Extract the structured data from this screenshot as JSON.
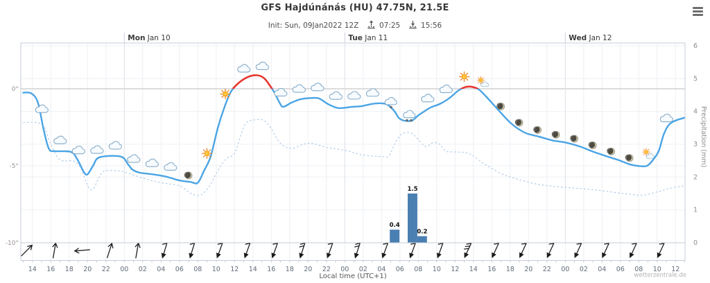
{
  "header": {
    "title": "GFS Hajdúnánás (HU) 47.75N, 21.5E",
    "init_text": "Init: Sun, 09Jan2022 12Z",
    "sunrise": "07:25",
    "sunset": "15:56"
  },
  "footer": {
    "watermark": "wetterzentrale.de"
  },
  "chart_data": {
    "type": "line",
    "title": "GFS Hajdúnánás (HU) 47.75N, 21.5E",
    "x_axis": {
      "label": "Local time (UTC+1)",
      "start_hour_local": 13,
      "span_hours": 72,
      "hour_labels": [
        "14",
        "16",
        "18",
        "20",
        "22",
        "00",
        "02",
        "04",
        "06",
        "08",
        "10",
        "12",
        "14",
        "16",
        "18",
        "20",
        "22",
        "00",
        "02",
        "04",
        "06",
        "08",
        "10",
        "12",
        "14",
        "16",
        "18",
        "20",
        "22",
        "00",
        "02",
        "04",
        "06",
        "08",
        "10",
        "12"
      ]
    },
    "days": [
      {
        "day": "Mon",
        "date": "Jan 10",
        "hour": 11
      },
      {
        "day": "Tue",
        "date": "Jan 11",
        "hour": 35
      },
      {
        "day": "Wed",
        "date": "Jan 12",
        "hour": 59
      }
    ],
    "y_left": {
      "ticks": [
        {
          "label": "0°",
          "value": 0
        },
        {
          "label": "-5°",
          "value": -5
        },
        {
          "label": "-10°",
          "value": -10
        }
      ],
      "range": [
        -13,
        3
      ]
    },
    "y_right": {
      "label": "Precipitation (mm)",
      "ticks": [
        "0",
        "1",
        "2",
        "3",
        "4",
        "5",
        "6"
      ],
      "range": [
        0,
        6
      ]
    },
    "series": [
      {
        "name": "temperature_2m",
        "unit": "C",
        "color_below_zero": "#4aa4e4",
        "color_above_zero": "#e8352e",
        "points": [
          [
            0,
            -0.25
          ],
          [
            0.9,
            -0.3
          ],
          [
            1.6,
            -0.9
          ],
          [
            2.2,
            -2.6
          ],
          [
            2.8,
            -3.9
          ],
          [
            3.5,
            -4.05
          ],
          [
            5.2,
            -4.1
          ],
          [
            5.9,
            -4.6
          ],
          [
            6.6,
            -5.4
          ],
          [
            7.0,
            -5.55
          ],
          [
            7.6,
            -5.0
          ],
          [
            8.3,
            -4.45
          ],
          [
            10.6,
            -4.4
          ],
          [
            11.4,
            -4.9
          ],
          [
            11.9,
            -5.25
          ],
          [
            12.7,
            -5.45
          ],
          [
            14,
            -5.55
          ],
          [
            15.5,
            -5.7
          ],
          [
            17,
            -5.95
          ],
          [
            18.2,
            -6.05
          ],
          [
            19,
            -6.1
          ],
          [
            19.7,
            -5.3
          ],
          [
            20.4,
            -4.4
          ],
          [
            21.2,
            -2.5
          ],
          [
            21.9,
            -1.2
          ],
          [
            22.6,
            -0.2
          ],
          [
            23.4,
            0.35
          ],
          [
            24.4,
            0.75
          ],
          [
            25.4,
            0.88
          ],
          [
            26.2,
            0.7
          ],
          [
            26.8,
            0.25
          ],
          [
            27.3,
            -0.2
          ],
          [
            27.9,
            -0.9
          ],
          [
            28.3,
            -1.17
          ],
          [
            29.2,
            -0.9
          ],
          [
            30.2,
            -0.68
          ],
          [
            31.3,
            -0.6
          ],
          [
            32.2,
            -0.63
          ],
          [
            33.2,
            -1.0
          ],
          [
            34.3,
            -1.25
          ],
          [
            35.7,
            -1.18
          ],
          [
            36.9,
            -1.12
          ],
          [
            38,
            -0.98
          ],
          [
            39,
            -0.94
          ],
          [
            39.7,
            -1.05
          ],
          [
            40.4,
            -1.45
          ],
          [
            40.9,
            -1.9
          ],
          [
            41.5,
            -2.07
          ],
          [
            42.3,
            -2.07
          ],
          [
            43,
            -1.73
          ],
          [
            43.7,
            -1.45
          ],
          [
            44.4,
            -1.2
          ],
          [
            45.4,
            -0.97
          ],
          [
            46.4,
            -0.6
          ],
          [
            47.4,
            -0.1
          ],
          [
            48.2,
            0.12
          ],
          [
            48.9,
            0.12
          ],
          [
            49.6,
            -0.05
          ],
          [
            50.3,
            -0.45
          ],
          [
            51.6,
            -1.3
          ],
          [
            53.1,
            -2.25
          ],
          [
            54.6,
            -2.85
          ],
          [
            56.1,
            -3.1
          ],
          [
            57.6,
            -3.35
          ],
          [
            59.1,
            -3.5
          ],
          [
            60.6,
            -3.75
          ],
          [
            62.1,
            -4.1
          ],
          [
            63.6,
            -4.4
          ],
          [
            64.9,
            -4.65
          ],
          [
            66,
            -4.9
          ],
          [
            66.8,
            -5.0
          ],
          [
            67.9,
            -5.0
          ],
          [
            68.7,
            -4.5
          ],
          [
            69.2,
            -4.0
          ],
          [
            69.7,
            -3.0
          ],
          [
            70.2,
            -2.4
          ],
          [
            70.7,
            -2.15
          ],
          [
            71.3,
            -2.0
          ],
          [
            72,
            -1.88
          ]
        ]
      },
      {
        "name": "dewpoint_2m",
        "unit": "C",
        "style": "dashed",
        "color": "#b0cce9",
        "points": [
          [
            0,
            -2.2
          ],
          [
            1.5,
            -2.2
          ],
          [
            2.3,
            -2.5
          ],
          [
            3,
            -3.6
          ],
          [
            4,
            -4.6
          ],
          [
            5.5,
            -4.7
          ],
          [
            6.3,
            -5.2
          ],
          [
            7,
            -6.3
          ],
          [
            7.6,
            -6.5
          ],
          [
            8.5,
            -5.5
          ],
          [
            9.3,
            -5.3
          ],
          [
            11,
            -5.4
          ],
          [
            13,
            -5.8
          ],
          [
            15,
            -6.1
          ],
          [
            17,
            -6.3
          ],
          [
            18.3,
            -6.8
          ],
          [
            19.3,
            -6.9
          ],
          [
            20.3,
            -6.3
          ],
          [
            21,
            -5.5
          ],
          [
            22,
            -4.6
          ],
          [
            23,
            -4.2
          ],
          [
            23.7,
            -3.0
          ],
          [
            24.3,
            -2.2
          ],
          [
            25.5,
            -2.0
          ],
          [
            26.3,
            -2.1
          ],
          [
            27,
            -2.6
          ],
          [
            27.8,
            -3.4
          ],
          [
            28.6,
            -3.8
          ],
          [
            29.5,
            -3.85
          ],
          [
            30.5,
            -3.6
          ],
          [
            31.5,
            -3.55
          ],
          [
            33,
            -3.8
          ],
          [
            35,
            -4.0
          ],
          [
            37,
            -4.3
          ],
          [
            39,
            -4.4
          ],
          [
            39.8,
            -4.35
          ],
          [
            40.6,
            -3.4
          ],
          [
            41.3,
            -2.9
          ],
          [
            42.3,
            -2.9
          ],
          [
            43,
            -3.3
          ],
          [
            43.8,
            -3.75
          ],
          [
            44.6,
            -3.5
          ],
          [
            45.3,
            -3.6
          ],
          [
            46,
            -4.05
          ],
          [
            47,
            -4.1
          ],
          [
            48.5,
            -4.2
          ],
          [
            50,
            -4.8
          ],
          [
            52,
            -5.5
          ],
          [
            54,
            -5.9
          ],
          [
            56,
            -6.2
          ],
          [
            58,
            -6.35
          ],
          [
            60,
            -6.45
          ],
          [
            62,
            -6.55
          ],
          [
            64,
            -6.7
          ],
          [
            66,
            -6.85
          ],
          [
            67.5,
            -6.9
          ],
          [
            69,
            -6.7
          ],
          [
            70.5,
            -6.45
          ],
          [
            72,
            -6.3
          ]
        ]
      }
    ],
    "precip_bars": [
      {
        "start_hour": 39.9,
        "end_hour": 40.95,
        "value": 0.4,
        "label": "0.4"
      },
      {
        "start_hour": 41.85,
        "end_hour": 42.9,
        "value": 1.5,
        "label": "1.5"
      },
      {
        "start_hour": 42.9,
        "end_hour": 43.95,
        "value": 0.2,
        "label": "0.2"
      }
    ],
    "weather_icons": [
      [
        2,
        "cloud"
      ],
      [
        4,
        "cloud"
      ],
      [
        6,
        "cloud"
      ],
      [
        8,
        "cloud"
      ],
      [
        10,
        "cloud"
      ],
      [
        12,
        "cloud"
      ],
      [
        14,
        "cloud"
      ],
      [
        16,
        "cloud"
      ],
      [
        18,
        "moon"
      ],
      [
        20,
        "sun"
      ],
      [
        22,
        "sun"
      ],
      [
        24,
        "cloud"
      ],
      [
        26,
        "cloud"
      ],
      [
        28,
        "cloud"
      ],
      [
        30,
        "cloud"
      ],
      [
        32,
        "cloud"
      ],
      [
        34,
        "cloud"
      ],
      [
        36,
        "cloud"
      ],
      [
        38,
        "cloud"
      ],
      [
        40,
        "snow1"
      ],
      [
        42,
        "snow2"
      ],
      [
        44,
        "cloud"
      ],
      [
        46,
        "cloud"
      ],
      [
        48,
        "sun"
      ],
      [
        50,
        "suncloud"
      ],
      [
        52,
        "moon"
      ],
      [
        54,
        "moon"
      ],
      [
        56,
        "moon"
      ],
      [
        58,
        "moon"
      ],
      [
        60,
        "moon"
      ],
      [
        62,
        "moon"
      ],
      [
        64,
        "moon"
      ],
      [
        66,
        "moon"
      ],
      [
        68,
        "suncloud"
      ],
      [
        70,
        "cloud"
      ]
    ],
    "wind_barbs": [
      [
        0.4,
        45,
        0
      ],
      [
        3.4,
        10,
        0
      ],
      [
        6.4,
        265,
        0
      ],
      [
        9.4,
        18,
        0
      ],
      [
        12.4,
        10,
        0
      ],
      [
        15.4,
        197,
        1
      ],
      [
        18.4,
        197,
        1
      ],
      [
        21.4,
        200,
        1
      ],
      [
        24.4,
        200,
        1
      ],
      [
        27.4,
        200,
        1
      ],
      [
        30.4,
        198,
        2
      ],
      [
        33.4,
        200,
        1
      ],
      [
        36.4,
        198,
        2
      ],
      [
        39.4,
        200,
        1
      ],
      [
        42.4,
        200,
        1
      ],
      [
        45.4,
        200,
        1
      ],
      [
        48.4,
        205,
        3
      ],
      [
        51.4,
        205,
        1
      ],
      [
        54.4,
        205,
        1
      ],
      [
        57.4,
        205,
        1
      ],
      [
        60.4,
        205,
        1
      ],
      [
        63.4,
        205,
        1
      ],
      [
        66.4,
        205,
        1
      ],
      [
        69.4,
        205,
        1
      ]
    ],
    "colors": {
      "grid": "#eef0f4",
      "zero_line": "#c7c7c7",
      "border": "#c3cbd8",
      "day_separator": "#c9d0da",
      "bars": "#4a7fb2",
      "barbs": "#1c1c1c"
    }
  }
}
